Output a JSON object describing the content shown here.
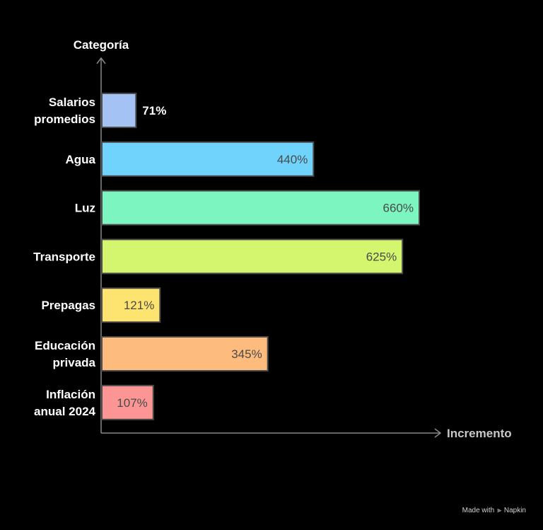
{
  "chart_data": {
    "type": "bar",
    "orientation": "horizontal",
    "ylabel": "Categoría",
    "xlabel": "Incremento",
    "unit": "%",
    "categories": [
      [
        "Salarios",
        "promedios"
      ],
      [
        "Agua"
      ],
      [
        "Luz"
      ],
      [
        "Transporte"
      ],
      [
        "Prepagas"
      ],
      [
        "Educación",
        "privada"
      ],
      [
        "Inflación",
        "anual 2024"
      ]
    ],
    "values": [
      71,
      440,
      660,
      625,
      121,
      345,
      107
    ],
    "value_labels": [
      "71%",
      "440%",
      "660%",
      "625%",
      "121%",
      "345%",
      "107%"
    ],
    "colors": [
      "#a4c2f4",
      "#6fd3fb",
      "#7cf5c0",
      "#d4f56e",
      "#fde36f",
      "#fdbb7e",
      "#fc9694"
    ],
    "xlim": [
      0,
      660
    ],
    "grid": false,
    "legend": "none"
  },
  "footer": {
    "made_with": "Made with",
    "brand": "Napkin",
    "brand_icon": "napkin-logo-icon"
  }
}
